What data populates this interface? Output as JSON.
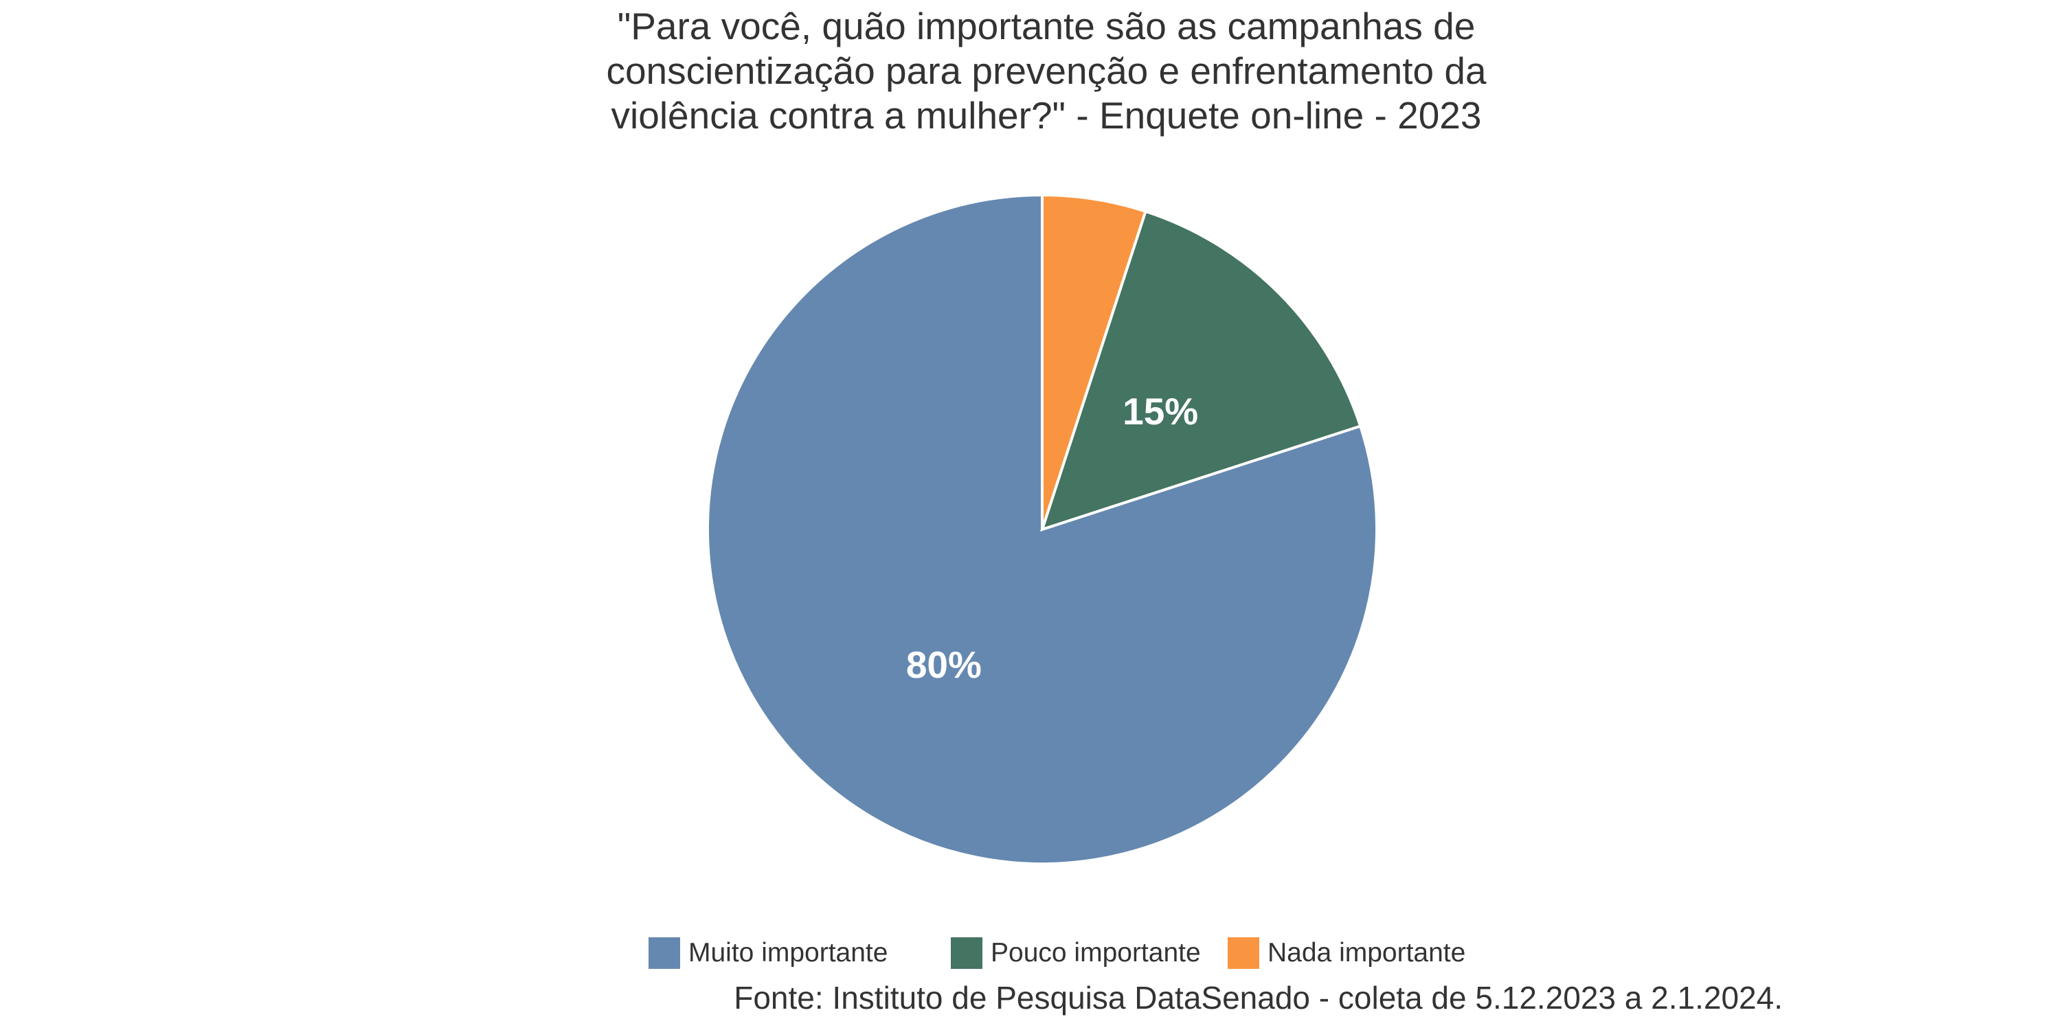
{
  "chart_data": {
    "type": "pie",
    "title_lines": [
      "\"Para você, quão importante são as campanhas de",
      "conscientização para prevenção e enfrentamento da",
      "violência contra a mulher?\" - Enquete on-line - 2023"
    ],
    "slices": [
      {
        "label": "Muito importante",
        "value": 80,
        "display": "80%",
        "color": "#6588B0"
      },
      {
        "label": "Pouco importante",
        "value": 15,
        "display": "15%",
        "color": "#447462"
      },
      {
        "label": "Nada importante",
        "value": 5,
        "display": "",
        "color": "#F99540"
      }
    ],
    "legend_position": "bottom",
    "caption": "Fonte: Instituto de Pesquisa DataSenado - coleta de 5.12.2023 a 2.1.2024.",
    "start_angle_deg": 0,
    "direction": "counterclockwise"
  }
}
